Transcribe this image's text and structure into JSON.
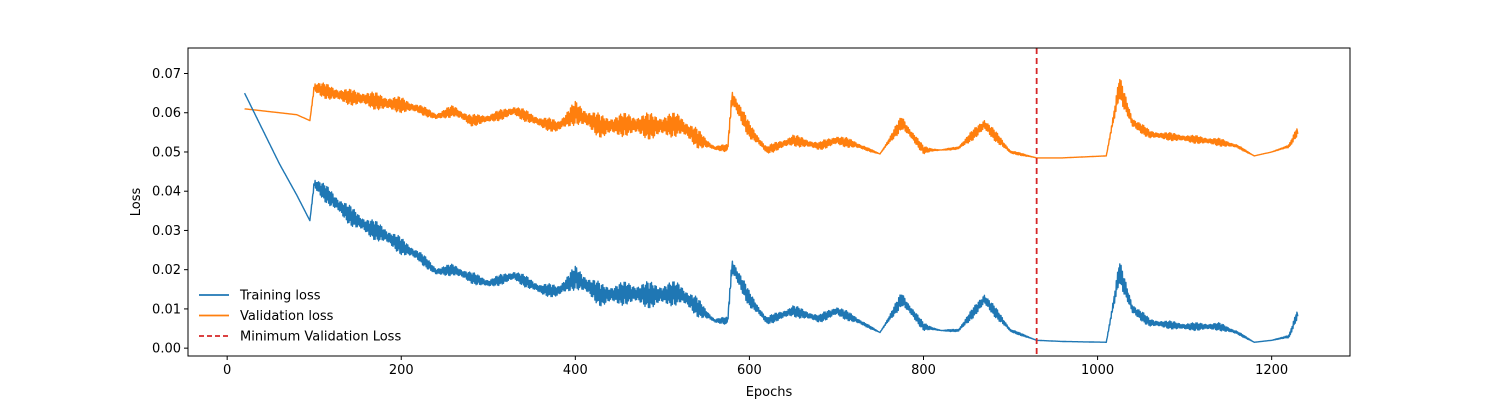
{
  "chart_data": {
    "type": "line",
    "xlabel": "Epochs",
    "ylabel": "Loss",
    "xlim": [
      -45,
      1290
    ],
    "ylim": [
      -0.002,
      0.0765
    ],
    "xticks": [
      0,
      200,
      400,
      600,
      800,
      1000,
      1200
    ],
    "xtick_labels": [
      "0",
      "200",
      "400",
      "600",
      "800",
      "1000",
      "1200"
    ],
    "yticks": [
      0.0,
      0.01,
      0.02,
      0.03,
      0.04,
      0.05,
      0.06,
      0.07
    ],
    "ytick_labels": [
      "0.00",
      "0.01",
      "0.02",
      "0.03",
      "0.04",
      "0.05",
      "0.06",
      "0.07"
    ],
    "grid": false,
    "legend_position": "lower-left",
    "colors": {
      "training": "#1f77b4",
      "validation": "#ff7f0e",
      "min_line": "#d62728"
    },
    "series": [
      {
        "name": "Training loss",
        "style": "solid",
        "x": [
          20,
          40,
          60,
          80,
          95,
          100,
          120,
          140,
          160,
          180,
          200,
          220,
          240,
          260,
          280,
          300,
          330,
          360,
          380,
          400,
          430,
          460,
          490,
          520,
          540,
          560,
          575,
          580,
          600,
          620,
          650,
          680,
          700,
          720,
          750,
          775,
          800,
          820,
          840,
          870,
          900,
          930,
          960,
          1010,
          1025,
          1040,
          1060,
          1100,
          1140,
          1160,
          1180,
          1200,
          1220,
          1230
        ],
        "y": [
          0.065,
          0.056,
          0.047,
          0.039,
          0.0325,
          0.042,
          0.038,
          0.034,
          0.031,
          0.029,
          0.026,
          0.0235,
          0.0195,
          0.02,
          0.018,
          0.0165,
          0.0185,
          0.015,
          0.0145,
          0.018,
          0.0135,
          0.014,
          0.0135,
          0.014,
          0.0105,
          0.007,
          0.007,
          0.021,
          0.0125,
          0.007,
          0.0095,
          0.0075,
          0.0095,
          0.0075,
          0.004,
          0.0125,
          0.0055,
          0.0045,
          0.0045,
          0.0125,
          0.0045,
          0.002,
          0.0017,
          0.0015,
          0.0195,
          0.01,
          0.0065,
          0.0055,
          0.0055,
          0.004,
          0.0015,
          0.002,
          0.003,
          0.009
        ],
        "amplitude": [
          0,
          0,
          0,
          0,
          0,
          0.0018,
          0.0025,
          0.0025,
          0.0025,
          0.0025,
          0.0022,
          0.0015,
          0.0012,
          0.0015,
          0.0015,
          0.0012,
          0.0015,
          0.0015,
          0.0018,
          0.003,
          0.003,
          0.003,
          0.0035,
          0.003,
          0.0025,
          0.0005,
          0.001,
          0.003,
          0.002,
          0.001,
          0.0015,
          0.001,
          0.0015,
          0.001,
          0,
          0.002,
          0.001,
          0,
          0.0005,
          0.002,
          0.0005,
          0,
          0,
          0,
          0.003,
          0.0018,
          0.001,
          0.001,
          0.001,
          0.0005,
          0,
          0,
          0.0005,
          0.0012
        ]
      },
      {
        "name": "Validation loss",
        "style": "solid",
        "x": [
          20,
          40,
          60,
          80,
          95,
          100,
          120,
          140,
          160,
          180,
          200,
          220,
          240,
          260,
          280,
          300,
          330,
          360,
          380,
          400,
          430,
          460,
          490,
          520,
          540,
          560,
          575,
          580,
          600,
          620,
          650,
          680,
          700,
          720,
          750,
          775,
          800,
          820,
          840,
          870,
          900,
          930,
          960,
          1010,
          1025,
          1040,
          1060,
          1100,
          1140,
          1160,
          1180,
          1200,
          1220,
          1230
        ],
        "y": [
          0.061,
          0.0605,
          0.06,
          0.0595,
          0.058,
          0.0665,
          0.065,
          0.064,
          0.0635,
          0.0625,
          0.062,
          0.061,
          0.059,
          0.0605,
          0.058,
          0.0585,
          0.0605,
          0.0575,
          0.0565,
          0.06,
          0.0565,
          0.057,
          0.0565,
          0.057,
          0.0535,
          0.051,
          0.051,
          0.064,
          0.0555,
          0.0505,
          0.053,
          0.0515,
          0.053,
          0.052,
          0.0495,
          0.0575,
          0.0505,
          0.0505,
          0.051,
          0.057,
          0.05,
          0.0485,
          0.0485,
          0.049,
          0.0665,
          0.0575,
          0.0545,
          0.0535,
          0.0525,
          0.0515,
          0.049,
          0.05,
          0.0515,
          0.0555
        ],
        "amplitude": [
          0,
          0,
          0,
          0,
          0,
          0.0018,
          0.002,
          0.002,
          0.0022,
          0.0022,
          0.002,
          0.0012,
          0.001,
          0.0015,
          0.0015,
          0.0012,
          0.0015,
          0.0015,
          0.0018,
          0.003,
          0.003,
          0.003,
          0.0035,
          0.003,
          0.0025,
          0.0005,
          0.001,
          0.003,
          0.002,
          0.001,
          0.0015,
          0.001,
          0.0015,
          0.001,
          0,
          0.002,
          0.001,
          0,
          0.0005,
          0.002,
          0.0005,
          0,
          0,
          0,
          0.003,
          0.0018,
          0.001,
          0.001,
          0.001,
          0.0005,
          0,
          0,
          0.0005,
          0.0012
        ]
      },
      {
        "name": "Minimum Validation Loss",
        "style": "dashed",
        "x_value": 930
      }
    ]
  }
}
